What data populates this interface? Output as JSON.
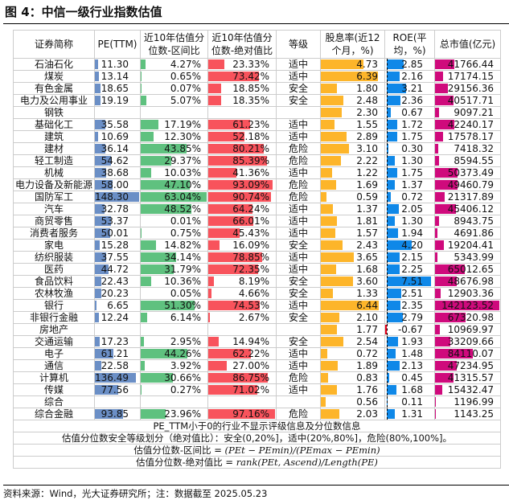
{
  "title": "图 4：中信一级行业指数估值",
  "headers": [
    "证券简称",
    "PE(TTM)",
    "近10年估值分位数-区间比",
    "近10年估值分位数-绝对值比",
    "等级",
    "股息率(近12个月，%)",
    "ROE(平均，%)",
    "总市值(亿元)"
  ],
  "colors": {
    "pe": "#6b8fc6",
    "range": "#5fc17f",
    "abs": "#f8535c",
    "div": "#fdb52a",
    "roe": "#0f88e8",
    "roe_neg": "#e8001c",
    "cap": "#cf0a7c"
  },
  "rows": [
    [
      "石油石化",
      "11.30",
      "4.27%",
      "23.33%",
      "适中",
      "4.73",
      "2.85",
      "41766.44"
    ],
    [
      "煤炭",
      "13.14",
      "0.65%",
      "73.42%",
      "适中",
      "6.39",
      "2.16",
      "17174.15"
    ],
    [
      "有色金属",
      "18.65",
      "0.07%",
      "18.85%",
      "安全",
      "1.80",
      "3.21",
      "29156.36"
    ],
    [
      "电力及公用事业",
      "19.19",
      "5.07%",
      "18.35%",
      "安全",
      "2.48",
      "2.36",
      "40517.71"
    ],
    [
      "钢铁",
      "",
      "",
      "",
      "",
      "2.30",
      "0.67",
      "9097.21"
    ],
    [
      "基础化工",
      "35.58",
      "17.19%",
      "61.23%",
      "适中",
      "1.55",
      "1.72",
      "42240.17"
    ],
    [
      "建筑",
      "10.69",
      "12.30%",
      "52.18%",
      "适中",
      "2.89",
      "1.75",
      "17578.17"
    ],
    [
      "建材",
      "36.14",
      "43.85%",
      "80.21%",
      "危险",
      "3.10",
      "0.30",
      "7418.32"
    ],
    [
      "轻工制造",
      "54.62",
      "29.37%",
      "85.39%",
      "危险",
      "2.22",
      "1.30",
      "8594.55"
    ],
    [
      "机械",
      "38.68",
      "10.03%",
      "41.36%",
      "适中",
      "1.22",
      "1.75",
      "50373.49"
    ],
    [
      "电力设备及新能源",
      "58.00",
      "47.10%",
      "93.09%",
      "危险",
      "1.69",
      "1.37",
      "49460.79"
    ],
    [
      "国防军工",
      "148.30",
      "63.04%",
      "90.74%",
      "危险",
      "0.59",
      "0.72",
      "21317.89"
    ],
    [
      "汽车",
      "32.78",
      "48.52%",
      "64.24%",
      "适中",
      "1.37",
      "2.05",
      "45406.12"
    ],
    [
      "商贸零售",
      "53.37",
      "0.01%",
      "66.01%",
      "适中",
      "1.81",
      "1.30",
      "8943.75"
    ],
    [
      "消费者服务",
      "50.01",
      "0.75%",
      "45.43%",
      "适中",
      "1.57",
      "1.94",
      "4691.86"
    ],
    [
      "家电",
      "15.28",
      "14.82%",
      "16.09%",
      "安全",
      "2.43",
      "4.20",
      "19204.41"
    ],
    [
      "纺织服装",
      "37.55",
      "34.14%",
      "78.85%",
      "适中",
      "3.65",
      "2.15",
      "5343.99"
    ],
    [
      "医药",
      "44.72",
      "31.79%",
      "72.35%",
      "适中",
      "1.68",
      "2.25",
      "65012.65"
    ],
    [
      "食品饮料",
      "22.43",
      "10.36%",
      "8.19%",
      "安全",
      "3.60",
      "7.51",
      "48676.98"
    ],
    [
      "农林牧渔",
      "20.23",
      "0.05%",
      "4.66%",
      "安全",
      "1.33",
      "2.51",
      "12903.36"
    ],
    [
      "银行",
      "6.65",
      "51.30%",
      "74.53%",
      "适中",
      "6.44",
      "2.35",
      "142123.52"
    ],
    [
      "非银行金融",
      "12.24",
      "6.14%",
      "2.67%",
      "安全",
      "2.10",
      "2.79",
      "67320.98"
    ],
    [
      "房地产",
      "",
      "",
      "",
      "",
      "1.77",
      "-0.67",
      "10969.97"
    ],
    [
      "交通运输",
      "17.23",
      "2.95%",
      "14.94%",
      "安全",
      "2.54",
      "1.93",
      "33209.66"
    ],
    [
      "电子",
      "61.21",
      "44.26%",
      "62.22%",
      "适中",
      "0.72",
      "1.48",
      "84110.07"
    ],
    [
      "通信",
      "22.58",
      "3.92%",
      "27.00%",
      "适中",
      "1.89",
      "2.13",
      "47234.95"
    ],
    [
      "计算机",
      "136.49",
      "30.66%",
      "86.75%",
      "危险",
      "0.83",
      "0.45",
      "41315.57"
    ],
    [
      "传媒",
      "77.56",
      "0.27%",
      "71.02%",
      "适中",
      "1.76",
      "1.68",
      "15432.47"
    ],
    [
      "综合",
      "",
      "",
      "",
      "",
      "0.56",
      "0.11",
      "1196.99"
    ],
    [
      "综合金融",
      "93.85",
      "23.96%",
      "97.16%",
      "危险",
      "2.03",
      "1.31",
      "1143.25"
    ]
  ],
  "notes": {
    "n1": "PE_TTM小于0的行业不显示评级信息及分位数信息",
    "n2": "估值分位数安全等级划分（绝对值比）：安全(0,20%]，适中(20%,80%]，危险(80%,100%]。",
    "n3_label": "估值分位数-区间比 = ",
    "n3_formula": "(PEt − PEmin)/(PEmax − PEmin)",
    "n4_label": "估值分位数-绝对值比 = ",
    "n4_formula": "rank(PEt, Ascend)/Length(PE)"
  },
  "footer": "资料来源：Wind，光大证券研究所；注：数据截至 2025.05.23"
}
